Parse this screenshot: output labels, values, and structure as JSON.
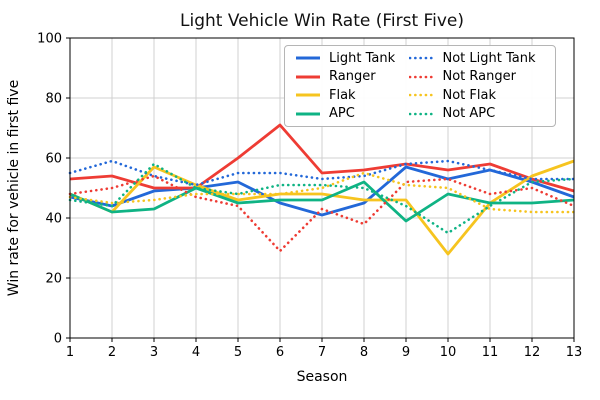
{
  "chart_data": {
    "type": "line",
    "title": "Light Vehicle Win Rate (First Five)",
    "xlabel": "Season",
    "ylabel": "Win rate for vehicle in first five",
    "x": [
      1,
      2,
      3,
      4,
      5,
      6,
      7,
      8,
      9,
      10,
      11,
      12,
      13
    ],
    "ylim": [
      0,
      100
    ],
    "yticks": [
      0,
      20,
      40,
      60,
      80,
      100
    ],
    "grid": true,
    "legend_position": "upper center",
    "legend_columns": 2,
    "colors": {
      "blue": "#2368d8",
      "red": "#ee3c34",
      "yellow": "#f6c41f",
      "teal": "#0fb384",
      "gridline": "#d0d0d0",
      "spine": "#000000"
    },
    "series": [
      {
        "name": "Light Tank",
        "color": "#2368d8",
        "style": "solid",
        "values": [
          47,
          44,
          49,
          50,
          52,
          45,
          41,
          45,
          57,
          53,
          56,
          52,
          47
        ]
      },
      {
        "name": "Ranger",
        "color": "#ee3c34",
        "style": "solid",
        "values": [
          53,
          54,
          50,
          50,
          60,
          71,
          55,
          56,
          58,
          56,
          58,
          53,
          49
        ]
      },
      {
        "name": "Flak",
        "color": "#f6c41f",
        "style": "solid",
        "values": [
          48,
          42,
          57,
          51,
          46,
          48,
          48,
          46,
          46,
          28,
          45,
          54,
          59
        ]
      },
      {
        "name": "APC",
        "color": "#0fb384",
        "style": "solid",
        "values": [
          48,
          42,
          43,
          50,
          45,
          46,
          46,
          52,
          39,
          48,
          45,
          45,
          46
        ]
      },
      {
        "name": "Not Light Tank",
        "color": "#2368d8",
        "style": "dotted",
        "values": [
          55,
          59,
          54,
          51,
          55,
          55,
          53,
          54,
          58,
          59,
          56,
          53,
          53
        ]
      },
      {
        "name": "Not Ranger",
        "color": "#ee3c34",
        "style": "dotted",
        "values": [
          48,
          50,
          54,
          47,
          44,
          29,
          43,
          38,
          52,
          53,
          48,
          50,
          44
        ]
      },
      {
        "name": "Not Flak",
        "color": "#f6c41f",
        "style": "dotted",
        "values": [
          47,
          45,
          46,
          48,
          48,
          48,
          50,
          55,
          51,
          50,
          43,
          42,
          42
        ]
      },
      {
        "name": "Not APC",
        "color": "#0fb384",
        "style": "dotted",
        "values": [
          46,
          44,
          58,
          50,
          48,
          51,
          51,
          50,
          44,
          35,
          44,
          52,
          53
        ]
      }
    ]
  }
}
